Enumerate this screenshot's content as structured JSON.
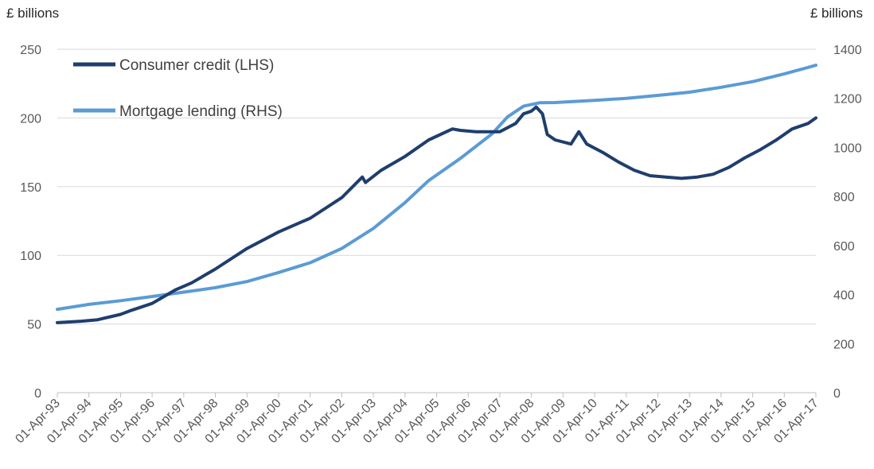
{
  "chart_data": {
    "type": "line",
    "left_unit": "£ billions",
    "right_unit": "£ billions",
    "y_left": {
      "ticks": [
        0,
        50,
        100,
        150,
        200,
        250
      ],
      "range": [
        0,
        250
      ]
    },
    "y_right": {
      "ticks": [
        0,
        200,
        400,
        600,
        800,
        1000,
        1200,
        1400
      ],
      "range": [
        0,
        1400
      ]
    },
    "x_ticks": [
      "01-Apr-93",
      "01-Apr-94",
      "01-Apr-95",
      "01-Apr-96",
      "01-Apr-97",
      "01-Apr-98",
      "01-Apr-99",
      "01-Apr-00",
      "01-Apr-01",
      "01-Apr-02",
      "01-Apr-03",
      "01-Apr-04",
      "01-Apr-05",
      "01-Apr-06",
      "01-Apr-07",
      "01-Apr-08",
      "01-Apr-09",
      "01-Apr-10",
      "01-Apr-11",
      "01-Apr-12",
      "01-Apr-13",
      "01-Apr-14",
      "01-Apr-15",
      "01-Apr-16",
      "01-Apr-17"
    ],
    "x_range": [
      1993.25,
      2017.25
    ],
    "grid": "horizontal",
    "legend_position": "top-left",
    "series": [
      {
        "name": "Consumer credit (LHS)",
        "axis": "left",
        "color": "#1f3e6e",
        "points": [
          [
            1993.25,
            51
          ],
          [
            1994.0,
            52
          ],
          [
            1994.5,
            53
          ],
          [
            1995.25,
            57
          ],
          [
            1995.6,
            60
          ],
          [
            1996.25,
            65
          ],
          [
            1997.0,
            75
          ],
          [
            1997.5,
            80
          ],
          [
            1998.25,
            90
          ],
          [
            1999.25,
            105
          ],
          [
            2000.25,
            117
          ],
          [
            2001.25,
            127
          ],
          [
            2002.25,
            142
          ],
          [
            2002.9,
            157
          ],
          [
            2003.0,
            153
          ],
          [
            2003.5,
            162
          ],
          [
            2004.25,
            172
          ],
          [
            2005.0,
            184
          ],
          [
            2005.75,
            192
          ],
          [
            2006.0,
            191
          ],
          [
            2006.5,
            190
          ],
          [
            2007.25,
            190
          ],
          [
            2007.75,
            196
          ],
          [
            2008.0,
            203
          ],
          [
            2008.25,
            205
          ],
          [
            2008.4,
            208
          ],
          [
            2008.6,
            203
          ],
          [
            2008.75,
            188
          ],
          [
            2009.0,
            184
          ],
          [
            2009.5,
            181
          ],
          [
            2009.75,
            190
          ],
          [
            2010.0,
            181
          ],
          [
            2010.5,
            175
          ],
          [
            2011.0,
            168
          ],
          [
            2011.5,
            162
          ],
          [
            2012.0,
            158
          ],
          [
            2012.5,
            157
          ],
          [
            2013.0,
            156
          ],
          [
            2013.5,
            157
          ],
          [
            2014.0,
            159
          ],
          [
            2014.5,
            164
          ],
          [
            2015.0,
            171
          ],
          [
            2015.5,
            177
          ],
          [
            2016.0,
            184
          ],
          [
            2016.5,
            192
          ],
          [
            2017.0,
            196
          ],
          [
            2017.25,
            200
          ]
        ]
      },
      {
        "name": "Mortgage lending (RHS)",
        "axis": "right",
        "color": "#5b9bd5",
        "points": [
          [
            1993.25,
            340
          ],
          [
            1994.25,
            360
          ],
          [
            1995.25,
            375
          ],
          [
            1996.25,
            392
          ],
          [
            1997.25,
            410
          ],
          [
            1998.25,
            428
          ],
          [
            1999.25,
            453
          ],
          [
            2000.25,
            490
          ],
          [
            2001.25,
            530
          ],
          [
            2002.25,
            588
          ],
          [
            2003.25,
            670
          ],
          [
            2004.25,
            775
          ],
          [
            2005.0,
            865
          ],
          [
            2006.0,
            955
          ],
          [
            2007.0,
            1055
          ],
          [
            2007.5,
            1125
          ],
          [
            2008.0,
            1168
          ],
          [
            2008.5,
            1182
          ],
          [
            2009.0,
            1183
          ],
          [
            2010.25,
            1192
          ],
          [
            2011.25,
            1200
          ],
          [
            2012.25,
            1212
          ],
          [
            2013.25,
            1225
          ],
          [
            2014.25,
            1245
          ],
          [
            2015.25,
            1268
          ],
          [
            2016.25,
            1300
          ],
          [
            2017.25,
            1335
          ]
        ]
      }
    ]
  }
}
